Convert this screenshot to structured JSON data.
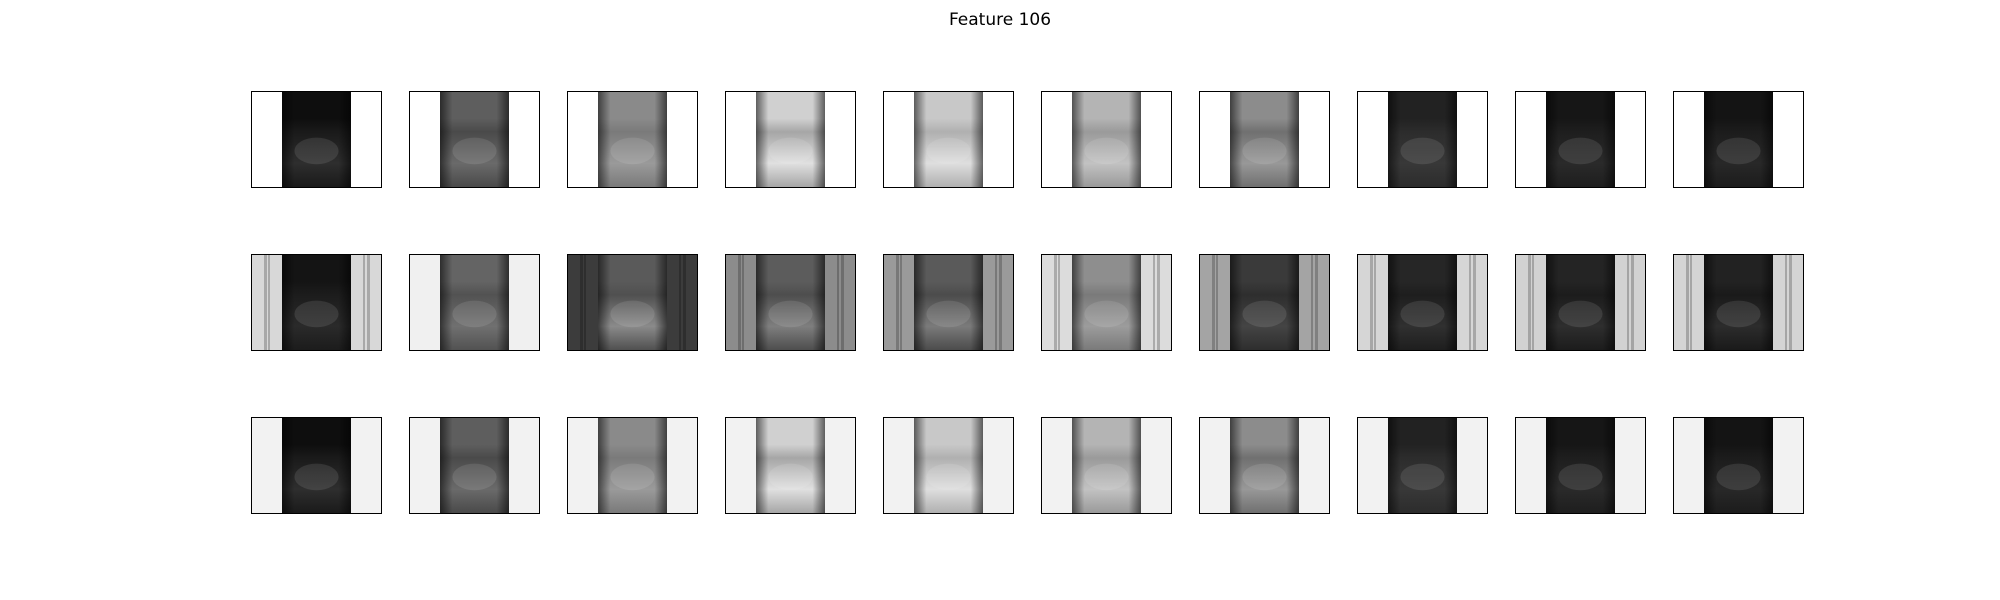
{
  "figure": {
    "title": "Feature 106"
  },
  "grid": {
    "rows": [
      {
        "name": "row-1",
        "panels": [
          {
            "bg": "#ffffff",
            "main": "#1a1a1a",
            "top": "#0e0e0e",
            "bottom": "#2e2e2e",
            "stripes": false
          },
          {
            "bg": "#ffffff",
            "main": "#4a4a4a",
            "top": "#5e5e5e",
            "bottom": "#6a6a6a",
            "stripes": false
          },
          {
            "bg": "#ffffff",
            "main": "#7a7a7a",
            "top": "#8a8a8a",
            "bottom": "#9a9a9a",
            "stripes": false
          },
          {
            "bg": "#ffffff",
            "main": "#a6a6a6",
            "top": "#d0d0d0",
            "bottom": "#e0e0e0",
            "stripes": false
          },
          {
            "bg": "#ffffff",
            "main": "#b0b0b0",
            "top": "#c8c8c8",
            "bottom": "#dedede",
            "stripes": false
          },
          {
            "bg": "#ffffff",
            "main": "#9a9a9a",
            "top": "#b4b4b4",
            "bottom": "#c2c2c2",
            "stripes": false
          },
          {
            "bg": "#ffffff",
            "main": "#707070",
            "top": "#8c8c8c",
            "bottom": "#989898",
            "stripes": false
          },
          {
            "bg": "#ffffff",
            "main": "#2c2c2c",
            "top": "#222222",
            "bottom": "#383838",
            "stripes": false
          },
          {
            "bg": "#ffffff",
            "main": "#1e1e1e",
            "top": "#161616",
            "bottom": "#2a2a2a",
            "stripes": false
          },
          {
            "bg": "#ffffff",
            "main": "#1c1c1c",
            "top": "#141414",
            "bottom": "#282828",
            "stripes": false
          }
        ]
      },
      {
        "name": "row-2",
        "panels": [
          {
            "bg": "#d8d8d8",
            "main": "#1c1c1c",
            "top": "#141414",
            "bottom": "#2a2a2a",
            "stripes": true
          },
          {
            "bg": "#f0f0f0",
            "main": "#525252",
            "top": "#646464",
            "bottom": "#707070",
            "stripes": false
          },
          {
            "bg": "#3c3c3c",
            "main": "#505050",
            "top": "#5a5a5a",
            "bottom": "#8a8a8a",
            "stripes": true
          },
          {
            "bg": "#8c8c8c",
            "main": "#4e4e4e",
            "top": "#5c5c5c",
            "bottom": "#7e7e7e",
            "stripes": true
          },
          {
            "bg": "#9a9a9a",
            "main": "#4c4c4c",
            "top": "#5a5a5a",
            "bottom": "#7a7a7a",
            "stripes": true
          },
          {
            "bg": "#dcdcdc",
            "main": "#7a7a7a",
            "top": "#8e8e8e",
            "bottom": "#9c9c9c",
            "stripes": true
          },
          {
            "bg": "#a4a4a4",
            "main": "#2e2e2e",
            "top": "#3a3a3a",
            "bottom": "#444444",
            "stripes": true
          },
          {
            "bg": "#d6d6d6",
            "main": "#1e1e1e",
            "top": "#262626",
            "bottom": "#303030",
            "stripes": true
          },
          {
            "bg": "#d2d2d2",
            "main": "#1c1c1c",
            "top": "#242424",
            "bottom": "#2e2e2e",
            "stripes": true
          },
          {
            "bg": "#d4d4d4",
            "main": "#1a1a1a",
            "top": "#222222",
            "bottom": "#2c2c2c",
            "stripes": true
          }
        ]
      },
      {
        "name": "row-3",
        "panels": [
          {
            "bg": "#f2f2f2",
            "main": "#1a1a1a",
            "top": "#0e0e0e",
            "bottom": "#2e2e2e",
            "stripes": false
          },
          {
            "bg": "#f2f2f2",
            "main": "#4a4a4a",
            "top": "#5e5e5e",
            "bottom": "#6a6a6a",
            "stripes": false
          },
          {
            "bg": "#f2f2f2",
            "main": "#7a7a7a",
            "top": "#8a8a8a",
            "bottom": "#9a9a9a",
            "stripes": false
          },
          {
            "bg": "#f2f2f2",
            "main": "#a6a6a6",
            "top": "#d0d0d0",
            "bottom": "#e0e0e0",
            "stripes": false
          },
          {
            "bg": "#f2f2f2",
            "main": "#b0b0b0",
            "top": "#c8c8c8",
            "bottom": "#dedede",
            "stripes": false
          },
          {
            "bg": "#f2f2f2",
            "main": "#9a9a9a",
            "top": "#b4b4b4",
            "bottom": "#c2c2c2",
            "stripes": false
          },
          {
            "bg": "#f2f2f2",
            "main": "#707070",
            "top": "#8c8c8c",
            "bottom": "#989898",
            "stripes": false
          },
          {
            "bg": "#f2f2f2",
            "main": "#2c2c2c",
            "top": "#222222",
            "bottom": "#383838",
            "stripes": false
          },
          {
            "bg": "#f2f2f2",
            "main": "#1e1e1e",
            "top": "#161616",
            "bottom": "#2a2a2a",
            "stripes": false
          },
          {
            "bg": "#f2f2f2",
            "main": "#1c1c1c",
            "top": "#141414",
            "bottom": "#282828",
            "stripes": false
          }
        ]
      }
    ]
  }
}
